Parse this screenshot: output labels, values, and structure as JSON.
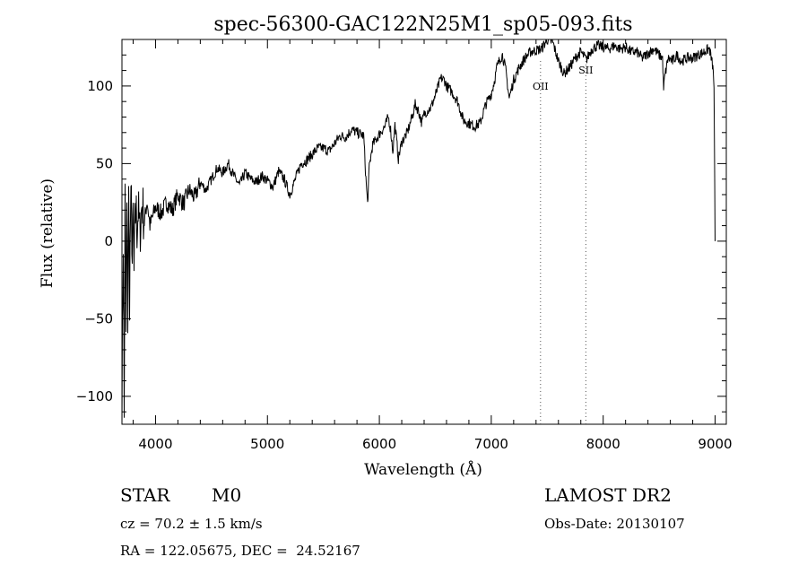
{
  "chart_data": {
    "type": "line",
    "title": "spec-56300-GAC122N25M1_sp05-093.fits",
    "xlabel": "Wavelength (Å)",
    "ylabel": "Flux (relative)",
    "xlim": [
      3700,
      9100
    ],
    "ylim": [
      -118,
      130
    ],
    "xticks": [
      4000,
      5000,
      6000,
      7000,
      8000,
      9000
    ],
    "yticks": [
      -100,
      -50,
      0,
      50,
      100
    ],
    "xtick_labels": [
      "4000",
      "5000",
      "6000",
      "7000",
      "8000",
      "9000"
    ],
    "ytick_labels": [
      "−100",
      "−50",
      "0",
      "50",
      "100"
    ],
    "grid": false,
    "series": [
      {
        "points": [
          [
            3700,
            -100
          ],
          [
            3712,
            2
          ],
          [
            3720,
            -115
          ],
          [
            3728,
            28
          ],
          [
            3736,
            -60
          ],
          [
            3744,
            20
          ],
          [
            3752,
            -50
          ],
          [
            3760,
            28
          ],
          [
            3768,
            -35
          ],
          [
            3776,
            15
          ],
          [
            3784,
            25
          ],
          [
            3792,
            -15
          ],
          [
            3800,
            18
          ],
          [
            3808,
            -22
          ],
          [
            3816,
            10
          ],
          [
            3825,
            22
          ],
          [
            3835,
            8
          ],
          [
            3845,
            20
          ],
          [
            3860,
            5
          ],
          [
            3880,
            25
          ],
          [
            3900,
            12
          ],
          [
            3925,
            26
          ],
          [
            3950,
            10
          ],
          [
            4000,
            22
          ],
          [
            4050,
            18
          ],
          [
            4100,
            25
          ],
          [
            4150,
            20
          ],
          [
            4200,
            30
          ],
          [
            4250,
            24
          ],
          [
            4300,
            33
          ],
          [
            4350,
            28
          ],
          [
            4400,
            38
          ],
          [
            4450,
            33
          ],
          [
            4500,
            40
          ],
          [
            4550,
            47
          ],
          [
            4600,
            44
          ],
          [
            4650,
            50
          ],
          [
            4700,
            42
          ],
          [
            4750,
            36
          ],
          [
            4800,
            44
          ],
          [
            4850,
            40
          ],
          [
            4900,
            38
          ],
          [
            4950,
            42
          ],
          [
            5000,
            39
          ],
          [
            5050,
            35
          ],
          [
            5100,
            45
          ],
          [
            5150,
            40
          ],
          [
            5200,
            30
          ],
          [
            5250,
            40
          ],
          [
            5300,
            50
          ],
          [
            5350,
            52
          ],
          [
            5400,
            56
          ],
          [
            5450,
            60
          ],
          [
            5500,
            60
          ],
          [
            5550,
            58
          ],
          [
            5600,
            63
          ],
          [
            5650,
            68
          ],
          [
            5700,
            67
          ],
          [
            5750,
            72
          ],
          [
            5800,
            70
          ],
          [
            5860,
            68
          ],
          [
            5880,
            40
          ],
          [
            5895,
            24
          ],
          [
            5910,
            48
          ],
          [
            5940,
            62
          ],
          [
            6000,
            69
          ],
          [
            6050,
            74
          ],
          [
            6080,
            80
          ],
          [
            6100,
            72
          ],
          [
            6120,
            58
          ],
          [
            6140,
            75
          ],
          [
            6170,
            53
          ],
          [
            6200,
            64
          ],
          [
            6250,
            70
          ],
          [
            6300,
            82
          ],
          [
            6320,
            88
          ],
          [
            6350,
            84
          ],
          [
            6380,
            76
          ],
          [
            6400,
            82
          ],
          [
            6440,
            85
          ],
          [
            6460,
            86
          ],
          [
            6500,
            94
          ],
          [
            6550,
            105
          ],
          [
            6580,
            104
          ],
          [
            6600,
            100
          ],
          [
            6650,
            96
          ],
          [
            6700,
            90
          ],
          [
            6750,
            78
          ],
          [
            6800,
            76
          ],
          [
            6850,
            74
          ],
          [
            6900,
            76
          ],
          [
            6950,
            88
          ],
          [
            7000,
            95
          ],
          [
            7030,
            104
          ],
          [
            7050,
            112
          ],
          [
            7080,
            118
          ],
          [
            7100,
            120
          ],
          [
            7130,
            110
          ],
          [
            7160,
            92
          ],
          [
            7200,
            104
          ],
          [
            7250,
            112
          ],
          [
            7300,
            118
          ],
          [
            7350,
            122
          ],
          [
            7400,
            123
          ],
          [
            7450,
            124
          ],
          [
            7500,
            130
          ],
          [
            7550,
            128
          ],
          [
            7600,
            116
          ],
          [
            7650,
            108
          ],
          [
            7700,
            112
          ],
          [
            7750,
            118
          ],
          [
            7800,
            122
          ],
          [
            7850,
            117
          ],
          [
            7900,
            124
          ],
          [
            7950,
            126
          ],
          [
            8000,
            125
          ],
          [
            8050,
            124
          ],
          [
            8100,
            126
          ],
          [
            8150,
            124
          ],
          [
            8200,
            125
          ],
          [
            8250,
            122
          ],
          [
            8300,
            122
          ],
          [
            8350,
            118
          ],
          [
            8400,
            121
          ],
          [
            8450,
            124
          ],
          [
            8500,
            120
          ],
          [
            8530,
            118
          ],
          [
            8540,
            98
          ],
          [
            8550,
            106
          ],
          [
            8580,
            118
          ],
          [
            8620,
            116
          ],
          [
            8660,
            120
          ],
          [
            8700,
            116
          ],
          [
            8750,
            118
          ],
          [
            8800,
            118
          ],
          [
            8850,
            120
          ],
          [
            8900,
            122
          ],
          [
            8950,
            124
          ],
          [
            8980,
            112
          ],
          [
            8990,
            100
          ],
          [
            9000,
            0
          ]
        ]
      }
    ],
    "annotations": [
      {
        "label": "OII",
        "x": 7440
      },
      {
        "label": "SII",
        "x": 7845
      }
    ]
  },
  "info": {
    "object_class": "STAR",
    "subclass": "M0",
    "survey": "LAMOST DR2",
    "cz": "cz = 70.2 ± 1.5 km/s",
    "obs_date": "Obs-Date: 20130107",
    "coords": "RA = 122.05675, DEC =  24.52167"
  }
}
